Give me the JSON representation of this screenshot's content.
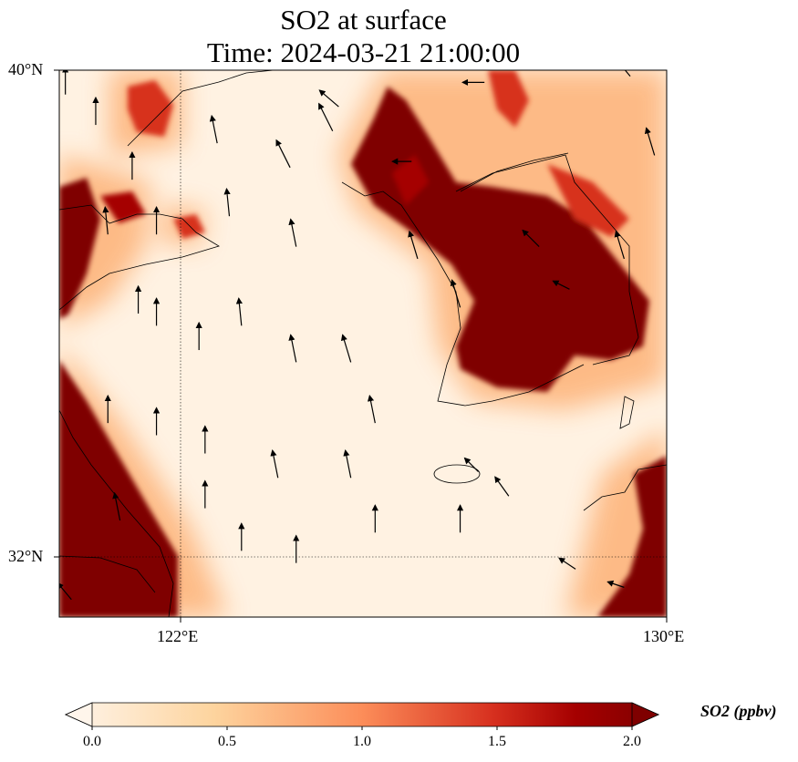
{
  "title_line1": "SO2 at surface",
  "title_line2": "Time: 2024-03-21 21:00:00",
  "axes": {
    "lat_labels": [
      "40°N",
      "32°N"
    ],
    "lon_labels": [
      "122°E",
      "130°E"
    ],
    "extent": {
      "lon": [
        120,
        130
      ],
      "lat": [
        31,
        40
      ]
    }
  },
  "colorbar": {
    "label": "SO2 (ppbv)",
    "ticks": [
      "0.0",
      "0.5",
      "1.0",
      "1.5",
      "2.0"
    ],
    "range": [
      0,
      2
    ],
    "extend": "both",
    "colormap": [
      "#fff5eb",
      "#fdd49e",
      "#fc8d59",
      "#d7301f",
      "#a50000",
      "#7f0000"
    ]
  },
  "chart_data": {
    "type": "heatmap",
    "title": "SO2 at surface\nTime: 2024-03-21 21:00:00",
    "variable": "SO2 (ppbv)",
    "high_regions": [
      "North Korea / Liaodong coast",
      "Shandong peninsula west",
      "Jiangsu/Shanghai coast",
      "Southern Japan (Kyushu)"
    ],
    "wind_vectors": [
      [
        120.1,
        39.6,
        0,
        1
      ],
      [
        120.6,
        39.1,
        0,
        1
      ],
      [
        120.8,
        37.3,
        -0.1,
        1
      ],
      [
        121.2,
        38.2,
        0,
        1
      ],
      [
        121.6,
        37.3,
        0,
        1
      ],
      [
        122.6,
        38.8,
        -0.2,
        1
      ],
      [
        122.8,
        37.6,
        -0.1,
        1
      ],
      [
        123.8,
        38.4,
        -0.5,
        1
      ],
      [
        123.9,
        37.1,
        -0.2,
        1
      ],
      [
        124.5,
        39.0,
        -0.5,
        1
      ],
      [
        121.3,
        36.0,
        0,
        1
      ],
      [
        121.6,
        35.8,
        0,
        1
      ],
      [
        122.3,
        35.4,
        0,
        1
      ],
      [
        123.0,
        35.8,
        -0.1,
        1
      ],
      [
        123.9,
        35.2,
        -0.2,
        1
      ],
      [
        124.8,
        35.2,
        -0.3,
        1
      ],
      [
        120.8,
        34.2,
        0,
        1
      ],
      [
        121.6,
        34.0,
        0,
        1
      ],
      [
        122.4,
        33.7,
        0,
        1
      ],
      [
        123.6,
        33.3,
        -0.2,
        1
      ],
      [
        124.8,
        33.3,
        -0.2,
        1
      ],
      [
        125.2,
        34.2,
        -0.2,
        1
      ],
      [
        121.0,
        32.6,
        -0.2,
        1
      ],
      [
        122.4,
        32.8,
        0,
        1
      ],
      [
        123.0,
        32.1,
        0,
        1
      ],
      [
        123.9,
        31.9,
        0,
        1
      ],
      [
        125.2,
        32.4,
        0,
        1
      ],
      [
        126.6,
        32.4,
        0,
        1
      ],
      [
        125.9,
        36.9,
        -0.3,
        1
      ],
      [
        126.6,
        36.1,
        -0.3,
        1
      ],
      [
        127.9,
        37.1,
        -0.6,
        0.6
      ],
      [
        128.4,
        36.4,
        -0.6,
        0.3
      ],
      [
        129.3,
        36.9,
        -0.3,
        1
      ],
      [
        129.8,
        38.6,
        -0.3,
        1
      ],
      [
        129.4,
        39.9,
        -0.5,
        0.6
      ],
      [
        127.0,
        39.8,
        -0.8,
        0
      ],
      [
        125.8,
        38.5,
        -0.7,
        0
      ],
      [
        126.9,
        33.4,
        -0.5,
        0.5
      ],
      [
        127.4,
        33.0,
        -0.5,
        0.7
      ],
      [
        128.5,
        31.8,
        -0.6,
        0.4
      ],
      [
        129.3,
        31.5,
        -0.6,
        0.2
      ],
      [
        120.2,
        31.3,
        -0.5,
        0.6
      ],
      [
        124.6,
        39.4,
        -0.7,
        0.6
      ]
    ]
  }
}
